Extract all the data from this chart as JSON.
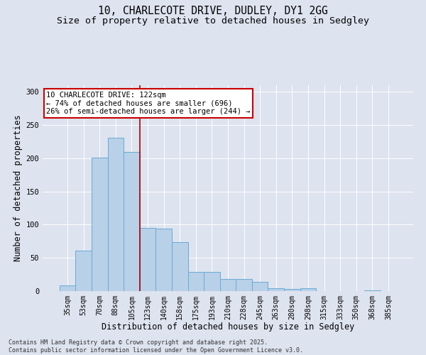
{
  "title_line1": "10, CHARLECOTE DRIVE, DUDLEY, DY1 2GG",
  "title_line2": "Size of property relative to detached houses in Sedgley",
  "xlabel": "Distribution of detached houses by size in Sedgley",
  "ylabel": "Number of detached properties",
  "categories": [
    "35sqm",
    "53sqm",
    "70sqm",
    "88sqm",
    "105sqm",
    "123sqm",
    "140sqm",
    "158sqm",
    "175sqm",
    "193sqm",
    "210sqm",
    "228sqm",
    "245sqm",
    "263sqm",
    "280sqm",
    "298sqm",
    "315sqm",
    "333sqm",
    "350sqm",
    "368sqm",
    "385sqm"
  ],
  "values": [
    9,
    61,
    201,
    231,
    209,
    95,
    94,
    74,
    29,
    29,
    18,
    18,
    14,
    4,
    3,
    4,
    0,
    0,
    0,
    1,
    0
  ],
  "bar_color": "#b8d0e8",
  "bar_edge_color": "#6aaad4",
  "vline_color": "#aa0000",
  "annotation_text": "10 CHARLECOTE DRIVE: 122sqm\n← 74% of detached houses are smaller (696)\n26% of semi-detached houses are larger (244) →",
  "annotation_box_color": "#ffffff",
  "annotation_box_edge_color": "#cc0000",
  "bg_color": "#dde3ef",
  "plot_bg_color": "#dde3ef",
  "footer_line1": "Contains HM Land Registry data © Crown copyright and database right 2025.",
  "footer_line2": "Contains public sector information licensed under the Open Government Licence v3.0.",
  "ylim": [
    0,
    310
  ],
  "yticks": [
    0,
    50,
    100,
    150,
    200,
    250,
    300
  ],
  "title_fontsize": 10.5,
  "subtitle_fontsize": 9.5,
  "axis_label_fontsize": 8.5,
  "tick_fontsize": 7,
  "annotation_fontsize": 7.5,
  "footer_fontsize": 6,
  "vline_index": 5
}
